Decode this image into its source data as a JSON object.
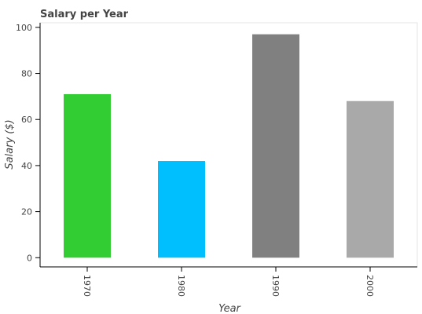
{
  "chart_data": {
    "type": "bar",
    "title": "Salary per Year",
    "xlabel": "Year",
    "ylabel": "Salary ($)",
    "categories": [
      "1970",
      "1980",
      "1990",
      "2000"
    ],
    "values": [
      71,
      42,
      97,
      68
    ],
    "colors": [
      "#32cd32",
      "#00bfff",
      "#808080",
      "#a9a9a9"
    ],
    "ylim": [
      -4,
      102
    ],
    "yticks": [
      "0",
      "20",
      "40",
      "60",
      "80",
      "100"
    ],
    "grid": false,
    "legend": "none"
  }
}
